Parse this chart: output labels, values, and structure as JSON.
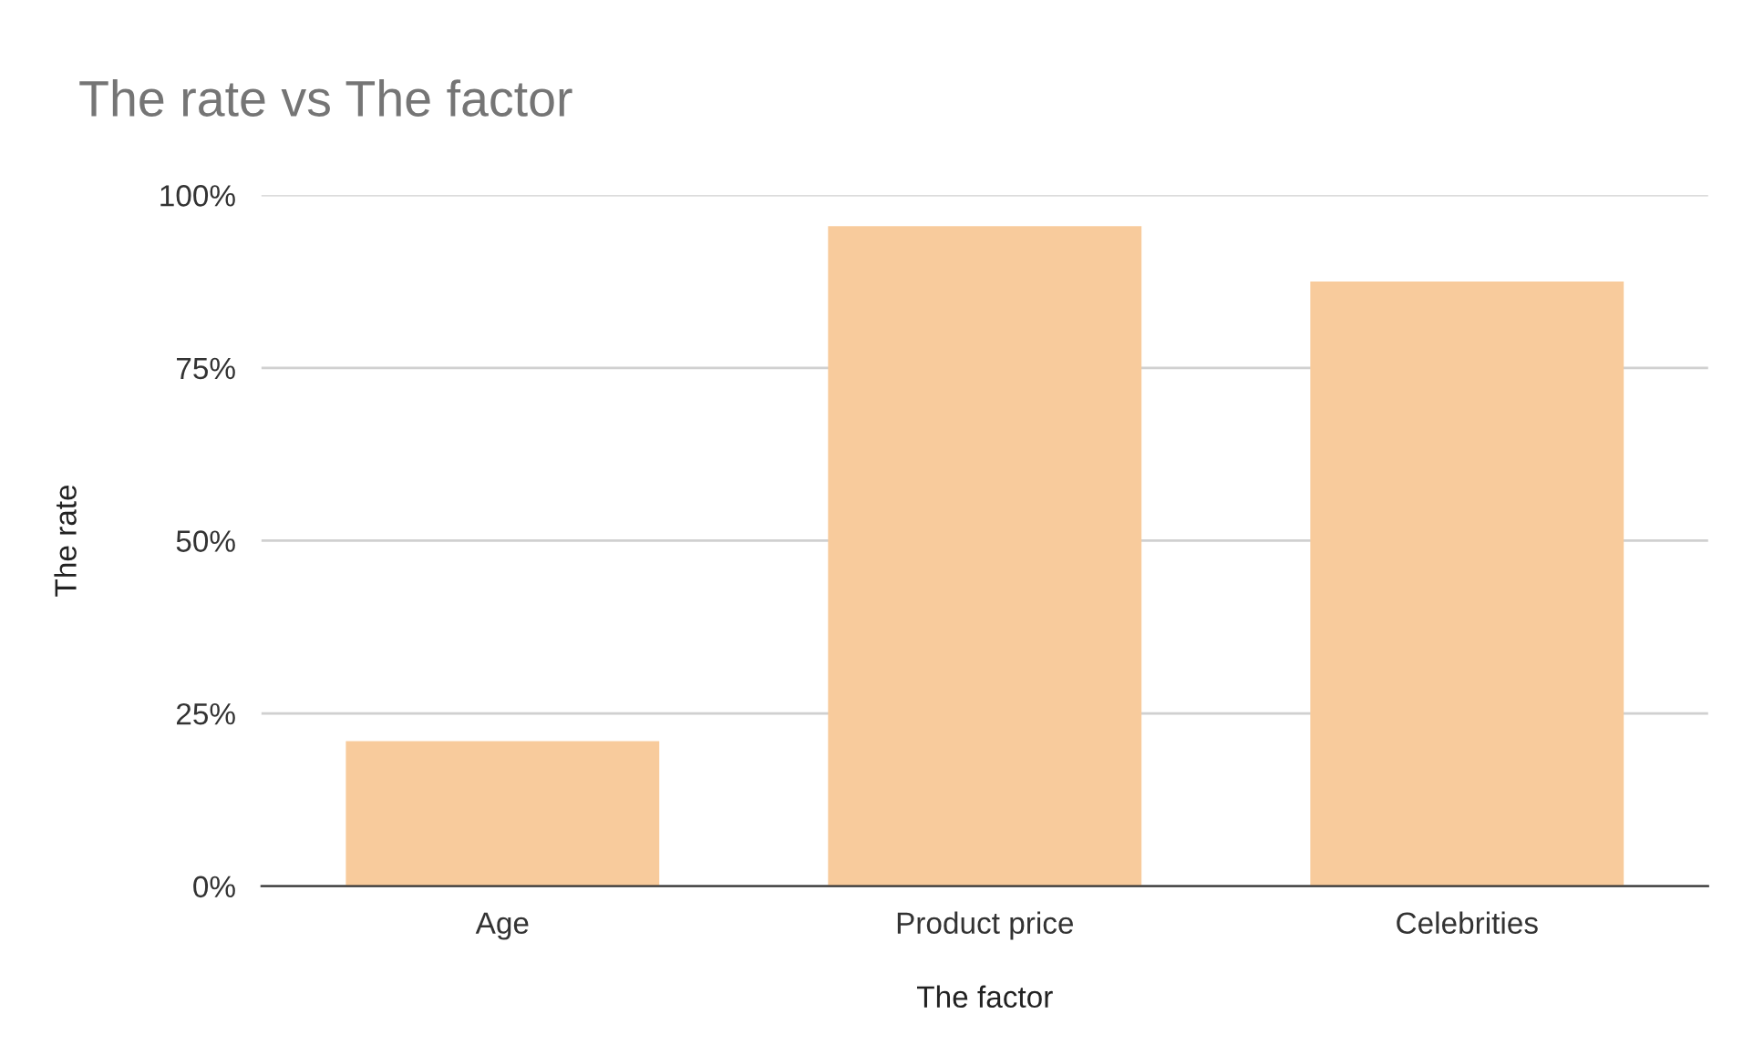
{
  "chart_data": {
    "type": "bar",
    "title": "The rate vs The factor",
    "xlabel": "The factor",
    "ylabel": "The rate",
    "categories": [
      "Age",
      "Product price",
      "Celebrities"
    ],
    "values": [
      21,
      95.5,
      87.5
    ],
    "color": "#f8cb9c",
    "ylim": [
      0,
      100
    ],
    "yticks": [
      {
        "value": 0,
        "label": "0%"
      },
      {
        "value": 25,
        "label": "25%"
      },
      {
        "value": 50,
        "label": "50%"
      },
      {
        "value": 75,
        "label": "75%"
      },
      {
        "value": 100,
        "label": "100%"
      }
    ],
    "grid": "y",
    "legend": false
  }
}
